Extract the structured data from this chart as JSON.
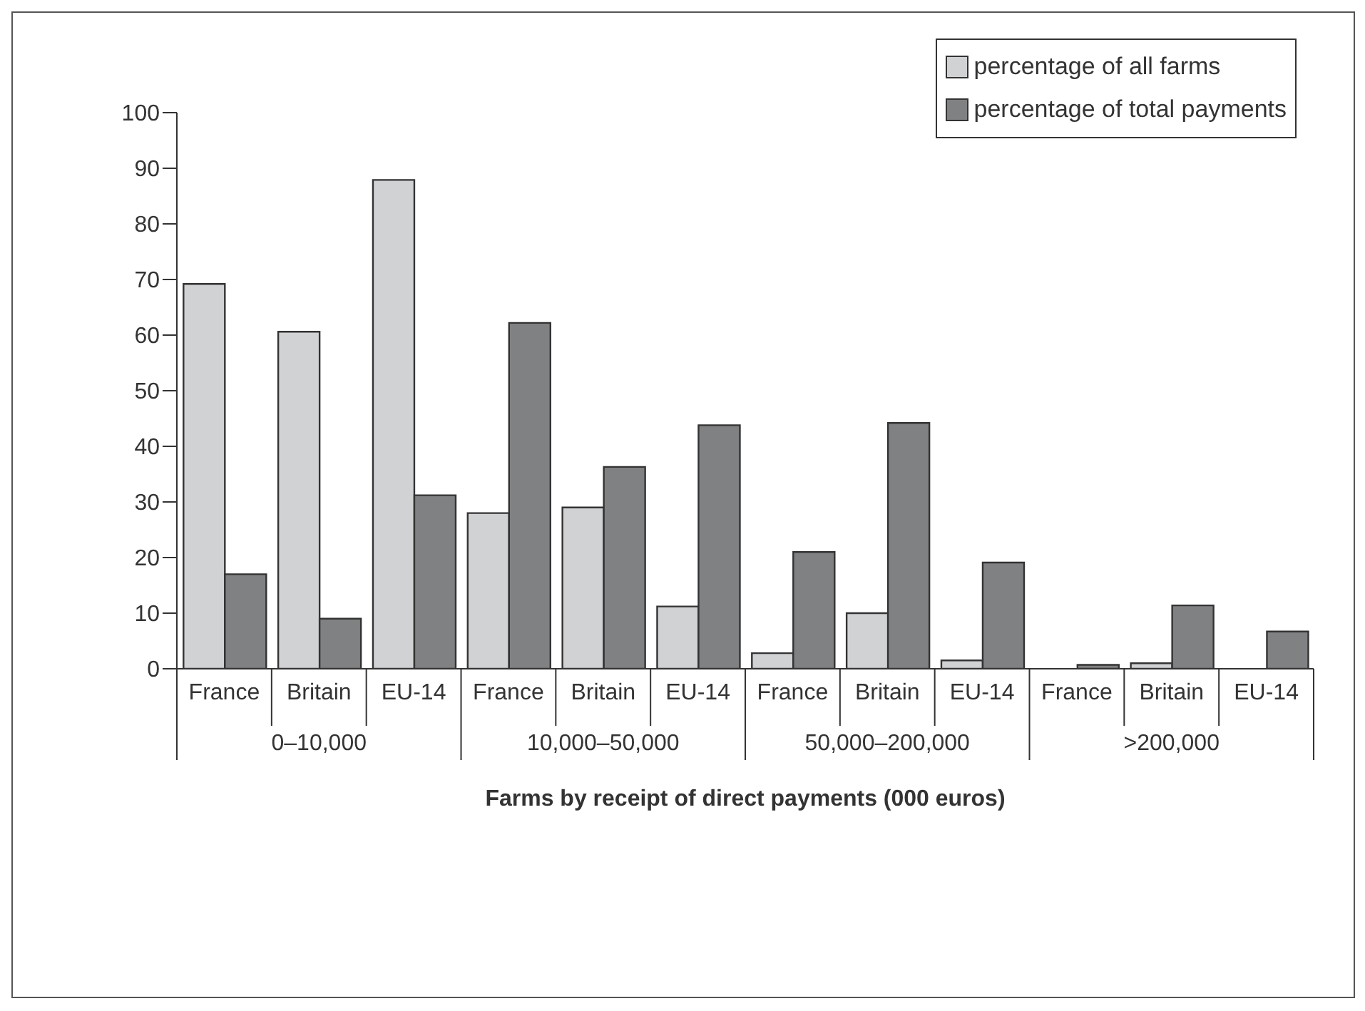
{
  "chart_data": {
    "type": "bar",
    "xlabel": "Farms by receipt of direct payments (000 euros)",
    "categories": [
      "France",
      "Britain",
      "EU-14",
      "France",
      "Britain",
      "EU-14",
      "France",
      "Britain",
      "EU-14",
      "France",
      "Britain",
      "EU-14"
    ],
    "annotations": [
      "0–10,000",
      "10,000–50,000",
      "50,000–200,000",
      ">200,000"
    ],
    "series": [
      {
        "name": "percentage of all farms",
        "color": "#d1d2d4",
        "values": [
          69.2,
          60.6,
          87.9,
          28,
          29,
          11.2,
          2.8,
          10,
          1.5,
          0,
          1,
          0
        ]
      },
      {
        "name": "percentage of total payments",
        "color": "#808183",
        "values": [
          17,
          9,
          31.2,
          62.2,
          36.3,
          43.8,
          21,
          44.2,
          19.1,
          0.7,
          11.4,
          6.7
        ]
      }
    ],
    "ylim": [
      0,
      100
    ],
    "yticks": [
      0,
      10,
      20,
      30,
      40,
      50,
      60,
      70,
      80,
      90,
      100
    ],
    "grid": false,
    "legend": "top right"
  }
}
